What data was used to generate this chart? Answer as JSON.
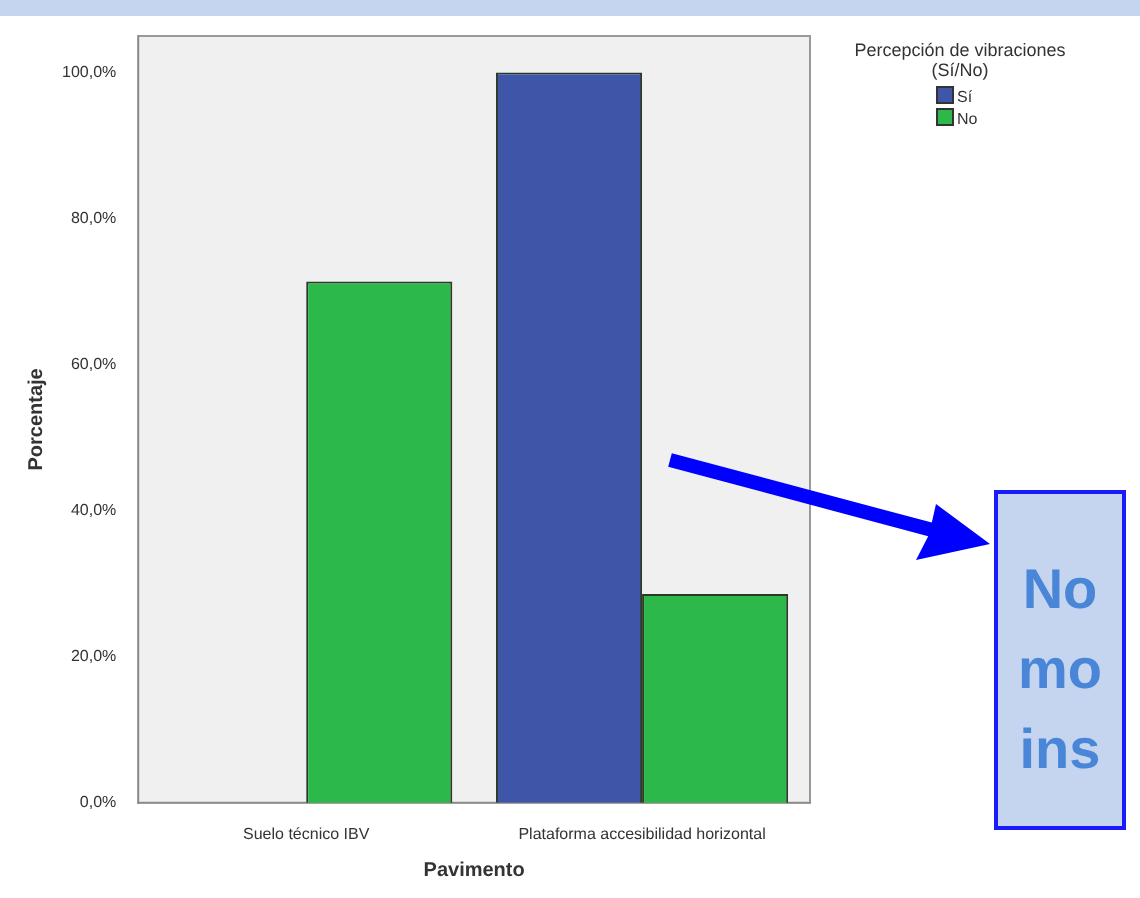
{
  "chart_data": {
    "type": "bar",
    "xlabel": "Pavimento",
    "ylabel": "Porcentaje",
    "legend_title": "Percepción de vibraciones (Sí/No)",
    "legend": "top right",
    "categories": [
      "Suelo técnico IBV",
      "Plataforma accesibilidad horizontal"
    ],
    "series": [
      {
        "name": "Sí",
        "color": "#3f55a8",
        "values": [
          0,
          100
        ]
      },
      {
        "name": "No",
        "color": "#2db84a",
        "values": [
          71.4,
          28.6
        ]
      }
    ],
    "ylim": [
      0,
      105
    ],
    "yticks": [
      {
        "value": 0,
        "label": "0,0%"
      },
      {
        "value": 20,
        "label": "20,0%"
      },
      {
        "value": 40,
        "label": "40,0%"
      },
      {
        "value": 60,
        "label": "60,0%"
      },
      {
        "value": 80,
        "label": "80,0%"
      },
      {
        "value": 100,
        "label": "100,0%"
      }
    ],
    "grid": false,
    "annotations": [
      "No\nmo\nins"
    ]
  }
}
